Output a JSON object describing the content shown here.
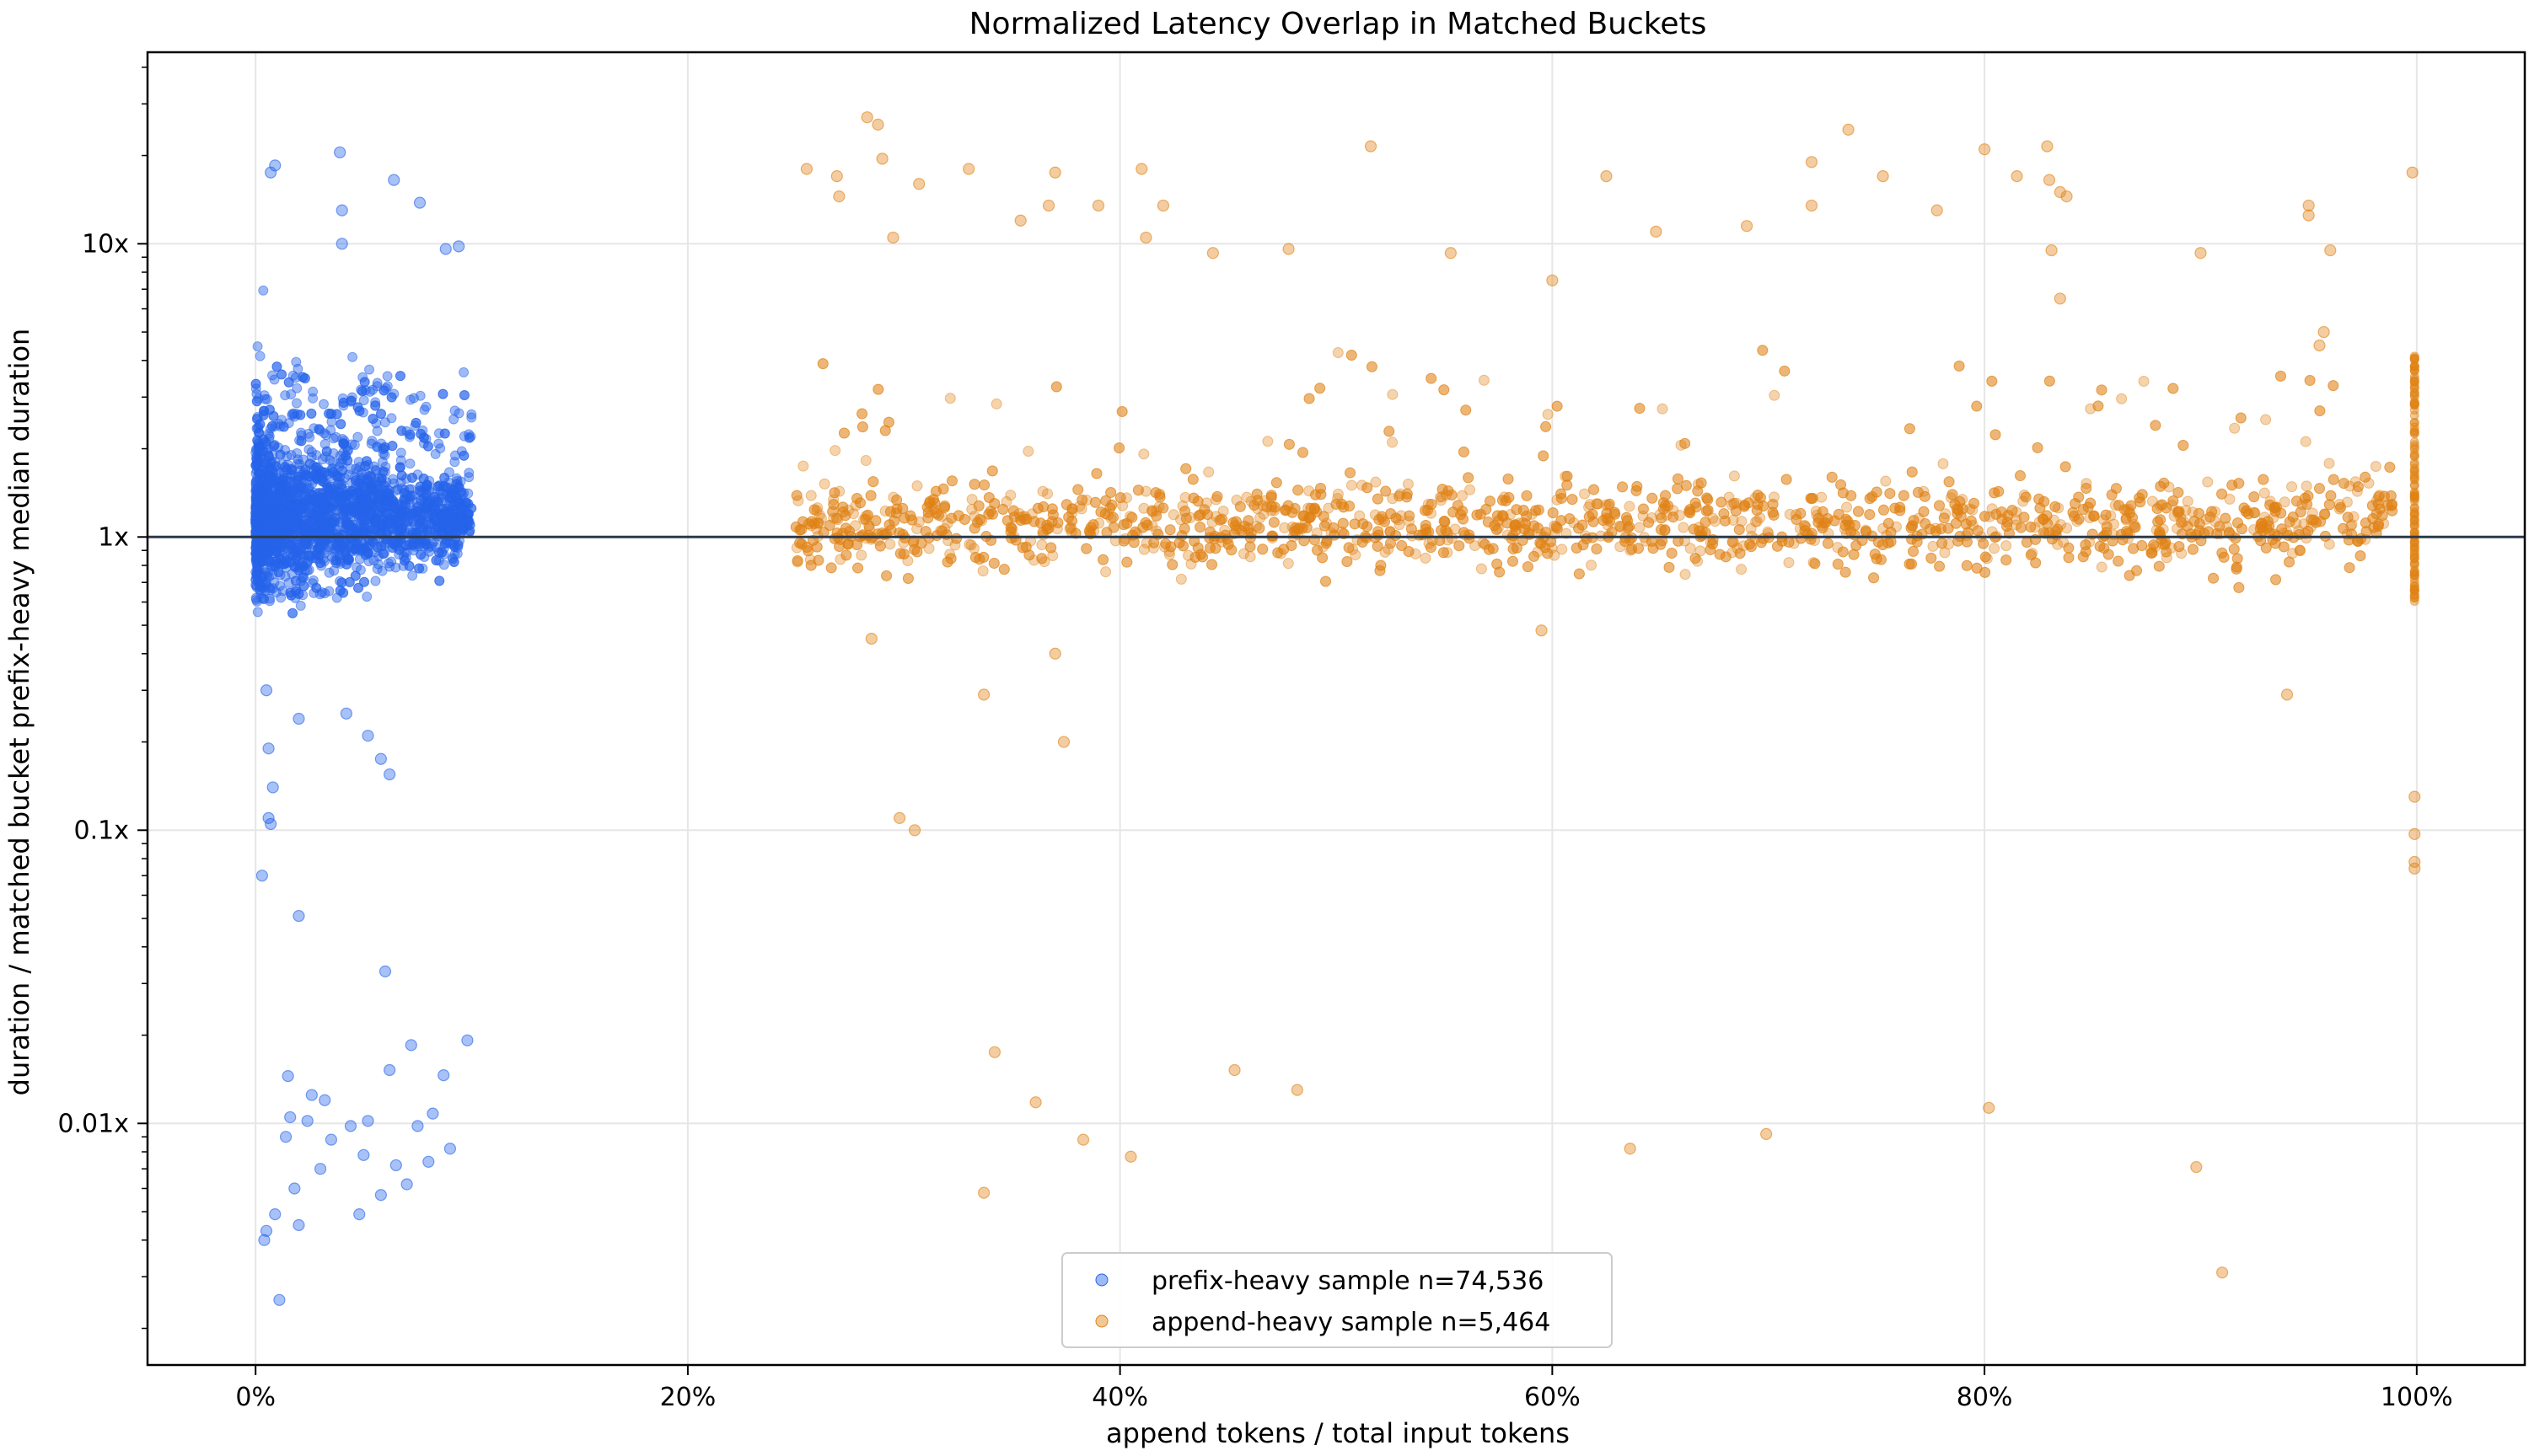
{
  "chart_data": {
    "type": "scatter",
    "title": "Normalized Latency Overlap in Matched Buckets",
    "xlabel": "append tokens / total input tokens",
    "ylabel": "duration / matched bucket prefix-heavy median duration",
    "x_scale": "linear",
    "y_scale": "log",
    "xlim": [
      -0.05,
      1.05
    ],
    "ylim": [
      0.0015,
      45
    ],
    "grid": true,
    "legend_position": "bottom-center",
    "x_ticks": [
      {
        "value": 0,
        "label": "0%"
      },
      {
        "value": 0.2,
        "label": "20%"
      },
      {
        "value": 0.4,
        "label": "40%"
      },
      {
        "value": 0.6,
        "label": "60%"
      },
      {
        "value": 0.8,
        "label": "80%"
      },
      {
        "value": 1.0,
        "label": "100%"
      }
    ],
    "y_ticks": [
      {
        "value": 0.01,
        "label": "0.01x"
      },
      {
        "value": 0.1,
        "label": "0.1x"
      },
      {
        "value": 1,
        "label": "1x"
      },
      {
        "value": 10,
        "label": "10x"
      }
    ],
    "reference_line": {
      "y": 1,
      "color": "#2b3a4a"
    },
    "series": [
      {
        "name": "prefix-heavy sample n=74,536",
        "color": "#2563eb",
        "x_range": [
          0,
          0.1
        ],
        "median_y": 1.15,
        "points": [
          {
            "x": 0.003,
            "y": 0.07
          },
          {
            "x": 0.004,
            "y": 0.004
          },
          {
            "x": 0.005,
            "y": 0.0043
          },
          {
            "x": 0.006,
            "y": 0.11
          },
          {
            "x": 0.008,
            "y": 0.14
          },
          {
            "x": 0.009,
            "y": 0.0049
          },
          {
            "x": 0.011,
            "y": 0.0025
          },
          {
            "x": 0.014,
            "y": 0.009
          },
          {
            "x": 0.016,
            "y": 0.0105
          },
          {
            "x": 0.015,
            "y": 0.0145
          },
          {
            "x": 0.02,
            "y": 0.051
          },
          {
            "x": 0.02,
            "y": 0.0045
          },
          {
            "x": 0.018,
            "y": 0.006
          },
          {
            "x": 0.024,
            "y": 0.0102
          },
          {
            "x": 0.026,
            "y": 0.0125
          },
          {
            "x": 0.032,
            "y": 0.012
          },
          {
            "x": 0.035,
            "y": 0.0088
          },
          {
            "x": 0.03,
            "y": 0.007
          },
          {
            "x": 0.044,
            "y": 0.0098
          },
          {
            "x": 0.048,
            "y": 0.0049
          },
          {
            "x": 0.05,
            "y": 0.0078
          },
          {
            "x": 0.052,
            "y": 0.0102
          },
          {
            "x": 0.058,
            "y": 0.0057
          },
          {
            "x": 0.06,
            "y": 0.033
          },
          {
            "x": 0.062,
            "y": 0.0152
          },
          {
            "x": 0.065,
            "y": 0.0072
          },
          {
            "x": 0.07,
            "y": 0.0062
          },
          {
            "x": 0.075,
            "y": 0.0098
          },
          {
            "x": 0.072,
            "y": 0.0185
          },
          {
            "x": 0.08,
            "y": 0.0074
          },
          {
            "x": 0.082,
            "y": 0.0108
          },
          {
            "x": 0.087,
            "y": 0.0146
          },
          {
            "x": 0.09,
            "y": 0.0082
          },
          {
            "x": 0.098,
            "y": 0.0192
          },
          {
            "x": 0.005,
            "y": 0.3
          },
          {
            "x": 0.02,
            "y": 0.24
          },
          {
            "x": 0.042,
            "y": 0.25
          },
          {
            "x": 0.052,
            "y": 0.21
          },
          {
            "x": 0.058,
            "y": 0.175
          },
          {
            "x": 0.062,
            "y": 0.155
          },
          {
            "x": 0.007,
            "y": 0.105
          },
          {
            "x": 0.006,
            "y": 0.19
          },
          {
            "x": 0.039,
            "y": 20.5
          },
          {
            "x": 0.064,
            "y": 16.5
          },
          {
            "x": 0.076,
            "y": 13.8
          },
          {
            "x": 0.007,
            "y": 17.5
          },
          {
            "x": 0.009,
            "y": 18.5
          },
          {
            "x": 0.094,
            "y": 9.8
          },
          {
            "x": 0.04,
            "y": 10
          },
          {
            "x": 0.04,
            "y": 13
          },
          {
            "x": 0.088,
            "y": 9.6
          }
        ]
      },
      {
        "name": "append-heavy sample n=5,464",
        "color": "#e08214",
        "x_range": [
          0.25,
          1.0
        ],
        "median_y": 1.1,
        "points": [
          {
            "x": 0.283,
            "y": 27
          },
          {
            "x": 0.288,
            "y": 25.5
          },
          {
            "x": 0.29,
            "y": 19.5
          },
          {
            "x": 0.255,
            "y": 18
          },
          {
            "x": 0.269,
            "y": 17
          },
          {
            "x": 0.27,
            "y": 14.5
          },
          {
            "x": 0.33,
            "y": 18
          },
          {
            "x": 0.307,
            "y": 16
          },
          {
            "x": 0.37,
            "y": 17.5
          },
          {
            "x": 0.41,
            "y": 18
          },
          {
            "x": 0.354,
            "y": 12
          },
          {
            "x": 0.367,
            "y": 13.5
          },
          {
            "x": 0.39,
            "y": 13.5
          },
          {
            "x": 0.42,
            "y": 13.5
          },
          {
            "x": 0.295,
            "y": 10.5
          },
          {
            "x": 0.412,
            "y": 10.5
          },
          {
            "x": 0.443,
            "y": 9.3
          },
          {
            "x": 0.478,
            "y": 9.6
          },
          {
            "x": 0.516,
            "y": 21.5
          },
          {
            "x": 0.553,
            "y": 9.3
          },
          {
            "x": 0.6,
            "y": 7.5
          },
          {
            "x": 0.625,
            "y": 17
          },
          {
            "x": 0.648,
            "y": 11
          },
          {
            "x": 0.69,
            "y": 11.5
          },
          {
            "x": 0.72,
            "y": 13.5
          },
          {
            "x": 0.737,
            "y": 24.5
          },
          {
            "x": 0.72,
            "y": 19
          },
          {
            "x": 0.753,
            "y": 17
          },
          {
            "x": 0.778,
            "y": 13
          },
          {
            "x": 0.8,
            "y": 21
          },
          {
            "x": 0.815,
            "y": 17
          },
          {
            "x": 0.829,
            "y": 21.5
          },
          {
            "x": 0.83,
            "y": 16.5
          },
          {
            "x": 0.835,
            "y": 15
          },
          {
            "x": 0.838,
            "y": 14.5
          },
          {
            "x": 0.831,
            "y": 9.5
          },
          {
            "x": 0.835,
            "y": 6.5
          },
          {
            "x": 0.95,
            "y": 13.5
          },
          {
            "x": 0.95,
            "y": 12.5
          },
          {
            "x": 0.998,
            "y": 17.5
          },
          {
            "x": 0.96,
            "y": 9.5
          },
          {
            "x": 0.9,
            "y": 9.3
          },
          {
            "x": 0.957,
            "y": 5
          },
          {
            "x": 0.955,
            "y": 4.5
          },
          {
            "x": 0.298,
            "y": 0.11
          },
          {
            "x": 0.305,
            "y": 0.1
          },
          {
            "x": 0.374,
            "y": 0.2
          },
          {
            "x": 0.337,
            "y": 0.29
          },
          {
            "x": 0.595,
            "y": 0.48
          },
          {
            "x": 0.94,
            "y": 0.29
          },
          {
            "x": 0.285,
            "y": 0.45
          },
          {
            "x": 0.37,
            "y": 0.4
          },
          {
            "x": 0.342,
            "y": 0.0175
          },
          {
            "x": 0.361,
            "y": 0.0118
          },
          {
            "x": 0.337,
            "y": 0.0058
          },
          {
            "x": 0.383,
            "y": 0.0088
          },
          {
            "x": 0.405,
            "y": 0.0077
          },
          {
            "x": 0.453,
            "y": 0.0152
          },
          {
            "x": 0.482,
            "y": 0.013
          },
          {
            "x": 0.636,
            "y": 0.0082
          },
          {
            "x": 0.699,
            "y": 0.0092
          },
          {
            "x": 0.802,
            "y": 0.0113
          },
          {
            "x": 0.898,
            "y": 0.0071
          },
          {
            "x": 0.91,
            "y": 0.0031
          },
          {
            "x": 0.999,
            "y": 0.13
          },
          {
            "x": 0.999,
            "y": 0.097
          },
          {
            "x": 0.999,
            "y": 0.078
          },
          {
            "x": 0.999,
            "y": 0.074
          }
        ]
      }
    ]
  }
}
